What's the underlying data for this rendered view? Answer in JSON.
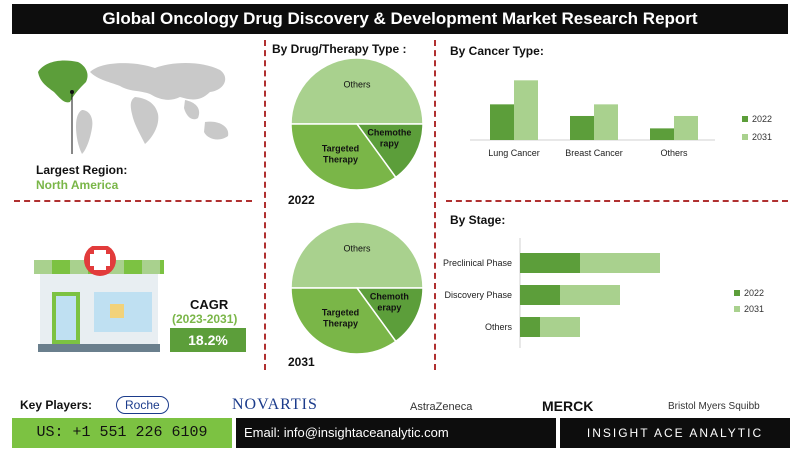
{
  "title": "Global Oncology Drug Discovery & Development Market Research Report",
  "region": {
    "label": "Largest Region:",
    "value": "North America"
  },
  "cagr": {
    "label": "CAGR",
    "period": "(2023-2031)",
    "value": "18.2%"
  },
  "colors": {
    "dark_green": "#5c9e3a",
    "light_green": "#a9d18e",
    "accent": "#7ab648",
    "divider": "#b03030"
  },
  "chart_data": [
    {
      "type": "pie",
      "title": "By Drug/Therapy Type :",
      "year_label": "2022",
      "slices": [
        {
          "label": "Others",
          "value": 50
        },
        {
          "label": "Chemothe rapy",
          "value": 15
        },
        {
          "label": "Targeted Therapy",
          "value": 35
        }
      ]
    },
    {
      "type": "pie",
      "year_label": "2031",
      "slices": [
        {
          "label": "Others",
          "value": 50
        },
        {
          "label": "Chemoth erapy",
          "value": 15
        },
        {
          "label": "Targeted Therapy",
          "value": 35
        }
      ]
    },
    {
      "type": "bar",
      "title": "By Cancer Type:",
      "categories": [
        "Lung Cancer",
        "Breast Cancer",
        "Others"
      ],
      "series": [
        {
          "name": "2022",
          "values": [
            46,
            31,
            15
          ]
        },
        {
          "name": "2031",
          "values": [
            77,
            46,
            31
          ]
        }
      ],
      "legend": "right"
    },
    {
      "type": "bar",
      "orientation": "horizontal",
      "stacked": true,
      "title": "By Stage:",
      "categories": [
        "Preclinical Phase",
        "Discovery Phase",
        "Others"
      ],
      "series": [
        {
          "name": "2022",
          "values": [
            60,
            40,
            20
          ]
        },
        {
          "name": "2031",
          "values": [
            80,
            60,
            40
          ]
        }
      ],
      "legend": "right"
    }
  ],
  "key_players": {
    "label": "Key Players:",
    "logos": [
      "Roche",
      "NOVARTIS",
      "AstraZeneca",
      "MERCK",
      "Bristol Myers Squibb"
    ]
  },
  "footer": {
    "phone": "US: +1 551 226 6109",
    "email": "Email: info@insightaceanalytic.com",
    "brand": "INSIGHT ACE ANALYTIC"
  }
}
